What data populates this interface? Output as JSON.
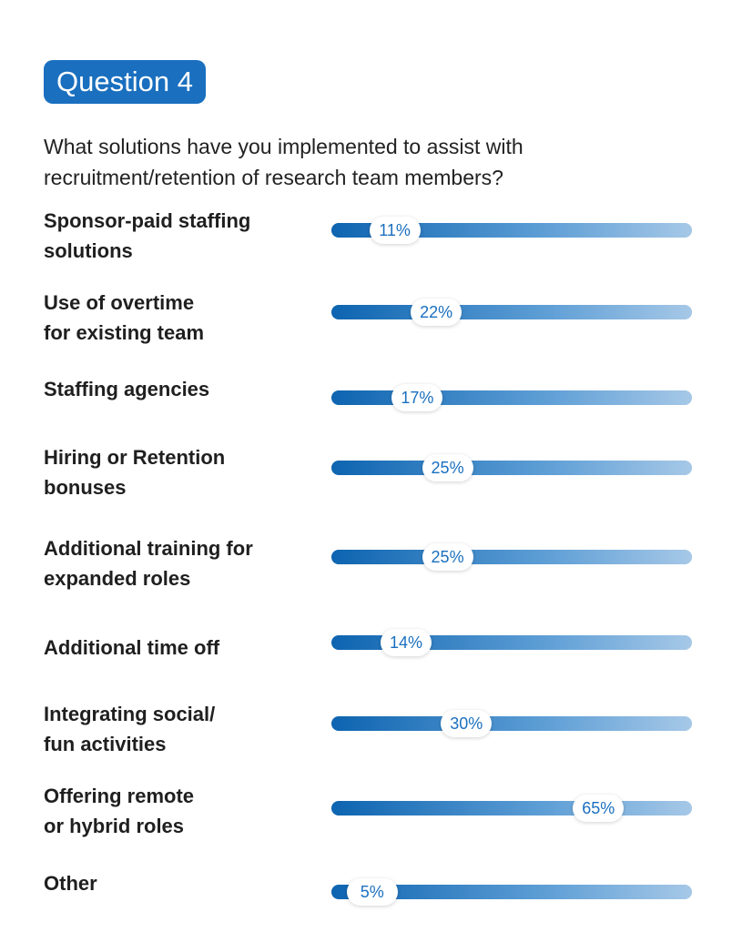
{
  "badge": "Question 4",
  "question": "What solutions have you implemented to assist with recruitment/retention of research team members?",
  "colors": {
    "accent": "#1a6fbf",
    "bar_start": "#0d64b0",
    "bar_end": "#a6c8e7"
  },
  "chart_data": {
    "type": "bar",
    "orientation": "horizontal",
    "categories": [
      "Sponsor-paid staffing solutions",
      "Use of overtime for existing team",
      "Staffing agencies",
      "Hiring or Retention bonuses",
      "Additional training for expanded roles",
      "Additional time off",
      "Integrating social/ fun activities",
      "Offering remote or hybrid roles",
      "Other"
    ],
    "label_lines": [
      [
        "Sponsor-paid staffing",
        "solutions"
      ],
      [
        "Use of overtime",
        "for existing team"
      ],
      [
        "Staffing agencies"
      ],
      [
        "Hiring or Retention",
        "bonuses"
      ],
      [
        "Additional training for",
        "expanded roles"
      ],
      [
        "Additional time off"
      ],
      [
        "Integrating social/",
        "fun activities"
      ],
      [
        "Offering remote",
        "or hybrid roles"
      ],
      [
        "Other"
      ]
    ],
    "values": [
      11,
      22,
      17,
      25,
      25,
      14,
      30,
      65,
      5
    ],
    "value_labels": [
      "11%",
      "22%",
      "17%",
      "25%",
      "25%",
      "14%",
      "30%",
      "65%",
      "5%"
    ],
    "xlim": [
      0,
      100
    ],
    "unit": "%"
  }
}
